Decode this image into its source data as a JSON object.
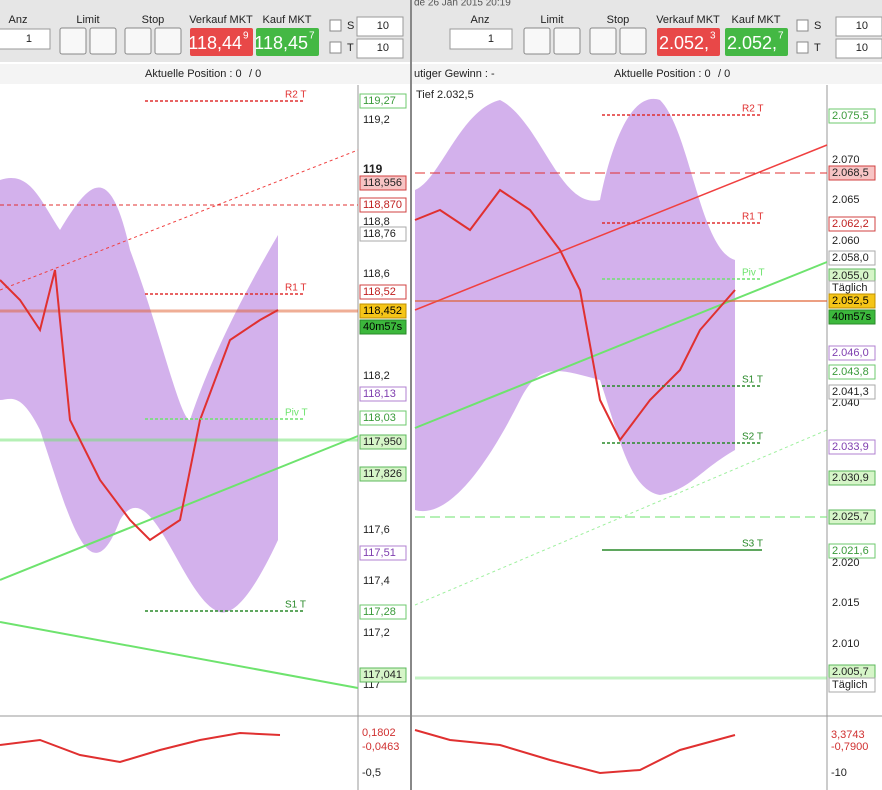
{
  "left": {
    "toolbar": {
      "anz_label": "Anz",
      "anz": "1",
      "limit": "Limit",
      "stop": "Stop",
      "sell_label": "Verkauf MKT",
      "sell_main": "118,44",
      "sell_sup": "9",
      "buy_label": "Kauf MKT",
      "buy_main": "118,45",
      "buy_sup": "7",
      "s": "S",
      "s_qty": "10",
      "t": "T",
      "t_qty": "10"
    },
    "info": {
      "position": "Aktuelle Position : 0",
      "slash": "/ 0"
    },
    "axis": [
      "119,2",
      "119",
      "118,8",
      "118,6",
      "118,2",
      "117,6",
      "117,4",
      "117,2",
      "117"
    ],
    "price_boxes": [
      "119,27",
      "118,956",
      "118,870",
      "118,76",
      "118,52",
      "118,452",
      "40m57s",
      "118,13",
      "118,03",
      "117,950",
      "117,826",
      "117,51",
      "117,28",
      "117,041"
    ],
    "levels": [
      "R2 T",
      "R1 T",
      "Piv T",
      "S1 T"
    ],
    "macd": [
      "0,1802",
      "-0,0463",
      "-0,5"
    ]
  },
  "right": {
    "title": "de  26 Jan 2015 20:19",
    "toolbar": {
      "anz_label": "Anz",
      "anz": "1",
      "limit": "Limit",
      "stop": "Stop",
      "sell_label": "Verkauf MKT",
      "sell_main": "2.052,",
      "sell_sup": "3",
      "buy_label": "Kauf MKT",
      "buy_main": "2.052,",
      "buy_sup": "7",
      "s": "S",
      "s_qty": "10",
      "t": "T",
      "t_qty": "10"
    },
    "info": {
      "gain": "utiger Gewinn : -",
      "position": "Aktuelle Position : 0",
      "slash": "/ 0",
      "low": "Tief 2.032,5"
    },
    "axis": [
      "2.070",
      "2.065",
      "2.060",
      "2.040",
      "2.020",
      "2.015",
      "2.010"
    ],
    "price_boxes": [
      "2.075,5",
      "2.068,5",
      "2.062,2",
      "2.058,0",
      "2.055,0",
      "Täglich",
      "2.052,5",
      "40m57s",
      "2.046,0",
      "2.043,8",
      "2.041,3",
      "2.033,9",
      "2.030,9",
      "2.025,7",
      "2.021,6",
      "2.005,7",
      "Täglich"
    ],
    "levels": [
      "R2 T",
      "R1 T",
      "Piv T",
      "S1 T",
      "S2 T",
      "S3 T"
    ],
    "macd": [
      "3,3743",
      "-0,7900",
      "-10"
    ]
  }
}
